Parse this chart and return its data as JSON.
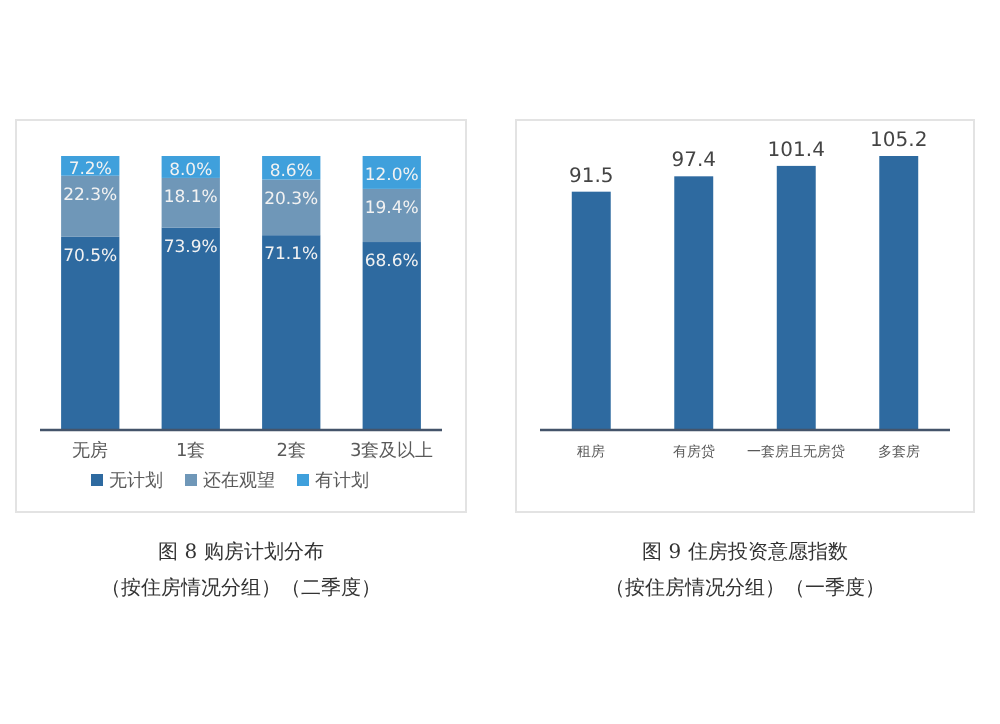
{
  "chart_data": [
    {
      "type": "bar",
      "stacked": true,
      "title": "图 8 购房计划分布",
      "subtitle": "（按住房情况分组）（二季度）",
      "categories": [
        "无房",
        "1套",
        "2套",
        "3套及以上"
      ],
      "series": [
        {
          "name": "无计划",
          "color": "#2e6aa0",
          "values": [
            70.5,
            73.9,
            71.1,
            68.6
          ],
          "value_labels": [
            "70.5%",
            "73.9%",
            "71.1%",
            "68.6%"
          ]
        },
        {
          "name": "还在观望",
          "color": "#6f97b8",
          "values": [
            22.3,
            18.1,
            20.3,
            19.4
          ],
          "value_labels": [
            "22.3%",
            "18.1%",
            "20.3%",
            "19.4%"
          ]
        },
        {
          "name": "有计划",
          "color": "#3fa0dc",
          "values": [
            7.2,
            8.0,
            8.6,
            12.0
          ],
          "value_labels": [
            "7.2%",
            "8.0%",
            "8.6%",
            "12.0%"
          ]
        }
      ],
      "tick_labels": "x",
      "legend": "bottom"
    },
    {
      "type": "bar",
      "title": "图 9 住房投资意愿指数",
      "subtitle": "（按住房情况分组）（一季度）",
      "categories": [
        "租房",
        "有房贷",
        "一套房且无房贷",
        "多套房"
      ],
      "values": [
        91.5,
        97.4,
        101.4,
        105.2
      ],
      "color": "#2e6aa0",
      "data_labels": true,
      "tick_labels": "x"
    }
  ]
}
